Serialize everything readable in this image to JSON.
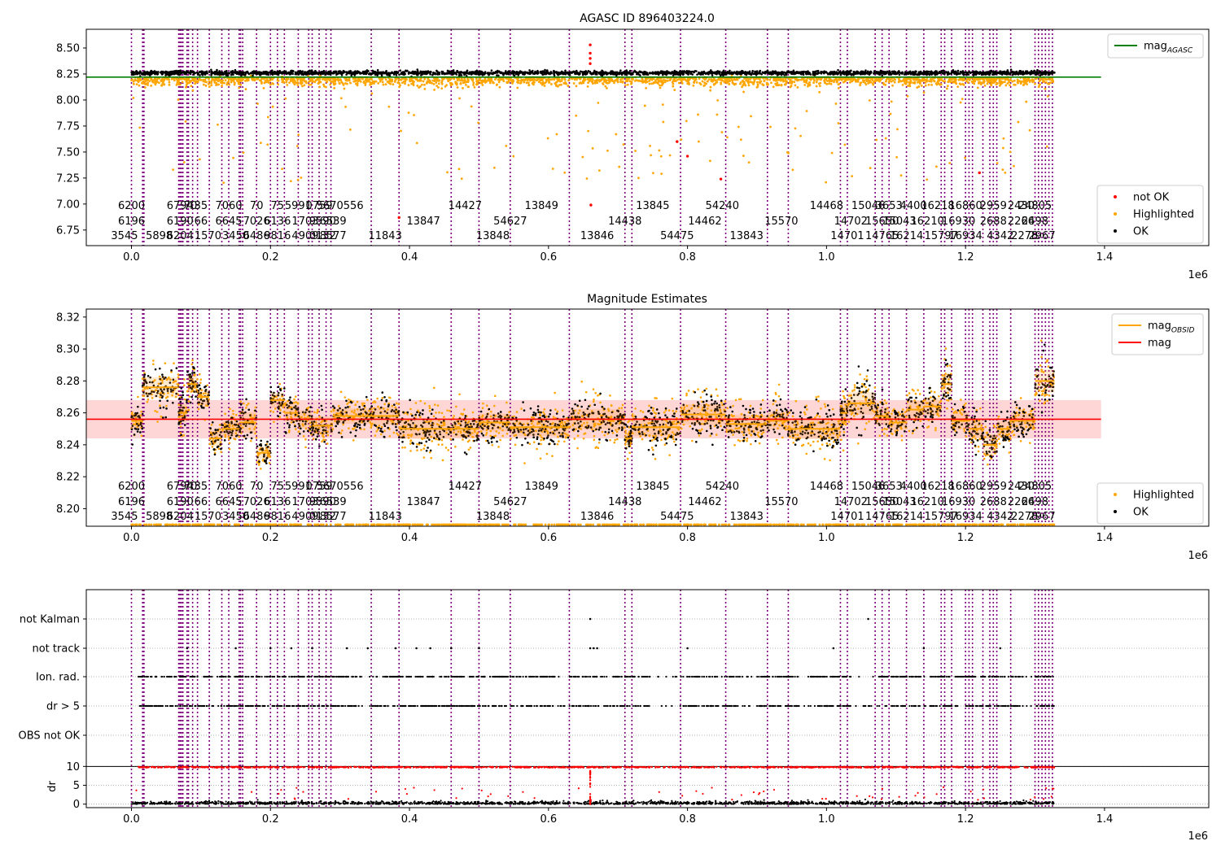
{
  "figure": {
    "background": "#ffffff",
    "colors": {
      "ok": "#000000",
      "highlighted": "#ffa500",
      "not_ok": "#ff0000",
      "obsid_line": "#800080",
      "agasc_line": "#008000",
      "obsid_mag_line": "#ffa500",
      "mag_line": "#ff0000",
      "mag_band": "#ffcccc"
    },
    "x_offset_label": "1e6"
  },
  "chart_data": [
    {
      "type": "scatter",
      "title": "AGASC ID 896403224.0",
      "xlim": [
        -0.065,
        1.55
      ],
      "ylim": [
        6.6,
        8.68
      ],
      "xticks": [
        0.0,
        0.2,
        0.4,
        0.6,
        0.8,
        1.0,
        1.2,
        1.4
      ],
      "xtick_labels": [
        "0.0",
        "0.2",
        "0.4",
        "0.6",
        "0.8",
        "1.0",
        "1.2",
        "1.4"
      ],
      "yticks": [
        6.75,
        7.0,
        7.25,
        7.5,
        7.75,
        8.0,
        8.25,
        8.5
      ],
      "ytick_labels": [
        "6.75",
        "7.00",
        "7.25",
        "7.50",
        "7.75",
        "8.00",
        "8.25",
        "8.50"
      ],
      "x_offset_label": "1e6",
      "lines": [
        {
          "name": "mag",
          "subscript": "AGASC",
          "y": 8.22,
          "x_range": [
            -0.065,
            1.395
          ],
          "color": "#008000"
        }
      ],
      "legend_upper": {
        "location": "upper right",
        "entries": [
          {
            "label": "mag",
            "subscript": "AGASC",
            "marker": "line",
            "color": "#008000"
          }
        ]
      },
      "legend_lower": {
        "location": "lower right",
        "entries": [
          {
            "label": "not OK",
            "marker": "dot",
            "color": "#ff0000"
          },
          {
            "label": "Highlighted",
            "marker": "dot",
            "color": "#ffa500"
          },
          {
            "label": "OK",
            "marker": "dot",
            "color": "#000000"
          }
        ]
      },
      "series": [
        {
          "name": "OK",
          "band": {
            "center": 8.26,
            "spread": 0.02
          },
          "color": "#000000"
        },
        {
          "name": "Highlighted",
          "band": {
            "center": 8.22,
            "spread": 0.04
          },
          "scatter_min": 7.2,
          "color": "#ffa500"
        },
        {
          "name": "not OK",
          "color": "#ff0000",
          "points": [
            {
              "x": 0.66,
              "y": 8.53
            },
            {
              "x": 0.66,
              "y": 8.45
            },
            {
              "x": 0.66,
              "y": 8.4
            },
            {
              "x": 0.66,
              "y": 8.35
            },
            {
              "x": 0.661,
              "y": 6.99
            },
            {
              "x": 0.8,
              "y": 7.46
            },
            {
              "x": 0.848,
              "y": 7.24
            },
            {
              "x": 0.385,
              "y": 6.87
            },
            {
              "x": 0.785,
              "y": 7.6
            },
            {
              "x": 1.22,
              "y": 7.3
            }
          ]
        }
      ]
    },
    {
      "type": "scatter",
      "title": "Magnitude Estimates",
      "xlim": [
        -0.065,
        1.55
      ],
      "ylim": [
        8.189,
        8.325
      ],
      "xticks": [
        0.0,
        0.2,
        0.4,
        0.6,
        0.8,
        1.0,
        1.2,
        1.4
      ],
      "xtick_labels": [
        "0.0",
        "0.2",
        "0.4",
        "0.6",
        "0.8",
        "1.0",
        "1.2",
        "1.4"
      ],
      "yticks": [
        8.2,
        8.22,
        8.24,
        8.26,
        8.28,
        8.3,
        8.32
      ],
      "ytick_labels": [
        "8.20",
        "8.22",
        "8.24",
        "8.26",
        "8.28",
        "8.30",
        "8.32"
      ],
      "x_offset_label": "1e6",
      "mag_line": {
        "name": "mag",
        "y": 8.256,
        "band": [
          8.244,
          8.268
        ],
        "x_range": [
          -0.065,
          1.395
        ],
        "color": "#ff0000"
      },
      "legend_upper": {
        "location": "upper right",
        "entries": [
          {
            "label": "mag",
            "subscript": "OBSID",
            "marker": "line",
            "color": "#ffa500"
          },
          {
            "label": "mag",
            "marker": "line",
            "color": "#ff0000"
          }
        ]
      },
      "legend_lower": {
        "location": "lower right",
        "entries": [
          {
            "label": "Highlighted",
            "marker": "dot",
            "color": "#ffa500"
          },
          {
            "label": "OK",
            "marker": "dot",
            "color": "#000000"
          }
        ]
      },
      "obsid_segments": [
        {
          "x0": 0.0,
          "x1": 0.016,
          "mean": 8.255,
          "spread": 0.012
        },
        {
          "x0": 0.016,
          "x1": 0.068,
          "mean": 8.276,
          "spread": 0.016
        },
        {
          "x0": 0.068,
          "x1": 0.08,
          "mean": 8.26,
          "spread": 0.014
        },
        {
          "x0": 0.08,
          "x1": 0.095,
          "mean": 8.278,
          "spread": 0.014
        },
        {
          "x0": 0.095,
          "x1": 0.112,
          "mean": 8.27,
          "spread": 0.012
        },
        {
          "x0": 0.112,
          "x1": 0.13,
          "mean": 8.244,
          "spread": 0.012
        },
        {
          "x0": 0.13,
          "x1": 0.155,
          "mean": 8.25,
          "spread": 0.012
        },
        {
          "x0": 0.155,
          "x1": 0.18,
          "mean": 8.254,
          "spread": 0.016
        },
        {
          "x0": 0.18,
          "x1": 0.2,
          "mean": 8.235,
          "spread": 0.01
        },
        {
          "x0": 0.2,
          "x1": 0.22,
          "mean": 8.268,
          "spread": 0.012
        },
        {
          "x0": 0.22,
          "x1": 0.24,
          "mean": 8.26,
          "spread": 0.014
        },
        {
          "x0": 0.24,
          "x1": 0.26,
          "mean": 8.256,
          "spread": 0.014
        },
        {
          "x0": 0.26,
          "x1": 0.29,
          "mean": 8.252,
          "spread": 0.014
        },
        {
          "x0": 0.29,
          "x1": 0.345,
          "mean": 8.258,
          "spread": 0.012
        },
        {
          "x0": 0.345,
          "x1": 0.385,
          "mean": 8.258,
          "spread": 0.014
        },
        {
          "x0": 0.385,
          "x1": 0.46,
          "mean": 8.25,
          "spread": 0.016
        },
        {
          "x0": 0.46,
          "x1": 0.5,
          "mean": 8.25,
          "spread": 0.014
        },
        {
          "x0": 0.5,
          "x1": 0.545,
          "mean": 8.254,
          "spread": 0.014
        },
        {
          "x0": 0.545,
          "x1": 0.63,
          "mean": 8.251,
          "spread": 0.014
        },
        {
          "x0": 0.63,
          "x1": 0.71,
          "mean": 8.256,
          "spread": 0.016
        },
        {
          "x0": 0.71,
          "x1": 0.72,
          "mean": 8.244,
          "spread": 0.01
        },
        {
          "x0": 0.72,
          "x1": 0.79,
          "mean": 8.251,
          "spread": 0.014
        },
        {
          "x0": 0.79,
          "x1": 0.855,
          "mean": 8.259,
          "spread": 0.016
        },
        {
          "x0": 0.855,
          "x1": 0.915,
          "mean": 8.253,
          "spread": 0.014
        },
        {
          "x0": 0.915,
          "x1": 0.945,
          "mean": 8.255,
          "spread": 0.014
        },
        {
          "x0": 0.945,
          "x1": 1.02,
          "mean": 8.25,
          "spread": 0.016
        },
        {
          "x0": 1.02,
          "x1": 1.03,
          "mean": 8.26,
          "spread": 0.016
        },
        {
          "x0": 1.03,
          "x1": 1.07,
          "mean": 8.266,
          "spread": 0.018
        },
        {
          "x0": 1.07,
          "x1": 1.09,
          "mean": 8.258,
          "spread": 0.014
        },
        {
          "x0": 1.09,
          "x1": 1.115,
          "mean": 8.254,
          "spread": 0.012
        },
        {
          "x0": 1.115,
          "x1": 1.14,
          "mean": 8.262,
          "spread": 0.014
        },
        {
          "x0": 1.14,
          "x1": 1.165,
          "mean": 8.264,
          "spread": 0.014
        },
        {
          "x0": 1.165,
          "x1": 1.18,
          "mean": 8.278,
          "spread": 0.016
        },
        {
          "x0": 1.18,
          "x1": 1.205,
          "mean": 8.255,
          "spread": 0.014
        },
        {
          "x0": 1.205,
          "x1": 1.225,
          "mean": 8.25,
          "spread": 0.014
        },
        {
          "x0": 1.225,
          "x1": 1.245,
          "mean": 8.24,
          "spread": 0.016
        },
        {
          "x0": 1.245,
          "x1": 1.265,
          "mean": 8.25,
          "spread": 0.012
        },
        {
          "x0": 1.265,
          "x1": 1.3,
          "mean": 8.255,
          "spread": 0.012
        },
        {
          "x0": 1.3,
          "x1": 1.328,
          "mean": 8.28,
          "spread": 0.018
        }
      ]
    },
    {
      "type": "scatter",
      "title": "",
      "xlim": [
        -0.065,
        1.55
      ],
      "categories": [
        "not Kalman",
        "not track",
        "Ion. rad.",
        "dr > 5",
        "OBS not OK"
      ],
      "category_rows": [
        {
          "label": "not Kalman",
          "points": [
            0.66,
            1.06
          ]
        },
        {
          "label": "not track",
          "points": [
            0.08,
            0.15,
            0.2,
            0.23,
            0.26,
            0.31,
            0.34,
            0.38,
            0.41,
            0.43,
            0.46,
            0.5,
            0.66,
            0.665,
            0.67,
            0.8,
            1.01,
            1.14,
            1.25
          ]
        },
        {
          "label": "Ion. rad.",
          "band": true
        },
        {
          "label": "dr > 5",
          "band": true
        },
        {
          "label": "OBS not OK",
          "points": []
        }
      ],
      "dr_panel": {
        "ylabel": "dr",
        "yticks": [
          0,
          5,
          10
        ],
        "ytick_labels": [
          "0",
          "5",
          "10"
        ],
        "ylim": [
          -0.5,
          10.5
        ],
        "threshold": 10,
        "red_level": 9.8
      },
      "xticks": [
        0.0,
        0.2,
        0.4,
        0.6,
        0.8,
        1.0,
        1.2,
        1.4
      ],
      "xtick_labels": [
        "0.0",
        "0.2",
        "0.4",
        "0.6",
        "0.8",
        "1.0",
        "1.2",
        "1.4"
      ],
      "x_offset_label": "1e6"
    }
  ],
  "obsid_lines": [
    0.0,
    0.016,
    0.018,
    0.068,
    0.07,
    0.072,
    0.074,
    0.08,
    0.082,
    0.088,
    0.095,
    0.112,
    0.13,
    0.14,
    0.155,
    0.157,
    0.16,
    0.18,
    0.2,
    0.21,
    0.22,
    0.24,
    0.255,
    0.26,
    0.27,
    0.28,
    0.287,
    0.345,
    0.385,
    0.46,
    0.5,
    0.545,
    0.63,
    0.71,
    0.72,
    0.79,
    0.855,
    0.915,
    0.945,
    1.02,
    1.03,
    1.07,
    1.08,
    1.09,
    1.115,
    1.14,
    1.165,
    1.17,
    1.18,
    1.2,
    1.205,
    1.21,
    1.225,
    1.235,
    1.24,
    1.245,
    1.265,
    1.3,
    1.305,
    1.31,
    1.315,
    1.32,
    1.325
  ],
  "obsid_labels": [
    {
      "x": 0.0,
      "row": 0,
      "text": "6200"
    },
    {
      "x": 0.0,
      "row": 1,
      "text": "6196"
    },
    {
      "x": -0.01,
      "row": 2,
      "text": "3545"
    },
    {
      "x": 0.04,
      "row": 2,
      "text": "5898"
    },
    {
      "x": 0.07,
      "row": 0,
      "text": "6794"
    },
    {
      "x": 0.07,
      "row": 1,
      "text": "6190"
    },
    {
      "x": 0.07,
      "row": 2,
      "text": "6204"
    },
    {
      "x": 0.085,
      "row": 0,
      "text": "70"
    },
    {
      "x": 0.1,
      "row": 0,
      "text": "35"
    },
    {
      "x": 0.1,
      "row": 1,
      "text": "66"
    },
    {
      "x": 0.11,
      "row": 2,
      "text": "1570"
    },
    {
      "x": 0.14,
      "row": 0,
      "text": "7060"
    },
    {
      "x": 0.14,
      "row": 1,
      "text": "6645"
    },
    {
      "x": 0.15,
      "row": 2,
      "text": "3450"
    },
    {
      "x": 0.18,
      "row": 0,
      "text": "70"
    },
    {
      "x": 0.18,
      "row": 1,
      "text": "7026"
    },
    {
      "x": 0.18,
      "row": 2,
      "text": "6486"
    },
    {
      "x": 0.21,
      "row": 0,
      "text": "75"
    },
    {
      "x": 0.21,
      "row": 1,
      "text": "6136"
    },
    {
      "x": 0.21,
      "row": 2,
      "text": "9816"
    },
    {
      "x": 0.24,
      "row": 0,
      "text": "5991"
    },
    {
      "x": 0.25,
      "row": 1,
      "text": "1703"
    },
    {
      "x": 0.25,
      "row": 2,
      "text": "4909"
    },
    {
      "x": 0.27,
      "row": 0,
      "text": "0759"
    },
    {
      "x": 0.275,
      "row": 1,
      "text": "9590"
    },
    {
      "x": 0.275,
      "row": 2,
      "text": "0132"
    },
    {
      "x": 0.3,
      "row": 0,
      "text": "5670556"
    },
    {
      "x": 0.29,
      "row": 1,
      "text": "6539"
    },
    {
      "x": 0.29,
      "row": 2,
      "text": "8577"
    },
    {
      "x": 0.365,
      "row": 2,
      "text": "11843"
    },
    {
      "x": 0.42,
      "row": 1,
      "text": "13847"
    },
    {
      "x": 0.48,
      "row": 0,
      "text": "14427"
    },
    {
      "x": 0.52,
      "row": 2,
      "text": "13848"
    },
    {
      "x": 0.545,
      "row": 1,
      "text": "54627"
    },
    {
      "x": 0.59,
      "row": 0,
      "text": "13849"
    },
    {
      "x": 0.67,
      "row": 2,
      "text": "13846"
    },
    {
      "x": 0.71,
      "row": 1,
      "text": "14438"
    },
    {
      "x": 0.75,
      "row": 0,
      "text": "13845"
    },
    {
      "x": 0.785,
      "row": 2,
      "text": "54475"
    },
    {
      "x": 0.825,
      "row": 1,
      "text": "14462"
    },
    {
      "x": 0.85,
      "row": 0,
      "text": "54240"
    },
    {
      "x": 0.885,
      "row": 2,
      "text": "13843"
    },
    {
      "x": 0.935,
      "row": 1,
      "text": "15570"
    },
    {
      "x": 1.0,
      "row": 0,
      "text": "14468"
    },
    {
      "x": 1.035,
      "row": 1,
      "text": "14702"
    },
    {
      "x": 1.03,
      "row": 2,
      "text": "14701"
    },
    {
      "x": 1.06,
      "row": 0,
      "text": "15046"
    },
    {
      "x": 1.08,
      "row": 1,
      "text": "15650"
    },
    {
      "x": 1.09,
      "row": 0,
      "text": "3653"
    },
    {
      "x": 1.125,
      "row": 0,
      "text": "4400"
    },
    {
      "x": 1.105,
      "row": 1,
      "text": "15043"
    },
    {
      "x": 1.08,
      "row": 2,
      "text": "14765"
    },
    {
      "x": 1.115,
      "row": 2,
      "text": "16214"
    },
    {
      "x": 1.16,
      "row": 0,
      "text": "16218"
    },
    {
      "x": 1.145,
      "row": 1,
      "text": "16210"
    },
    {
      "x": 1.165,
      "row": 2,
      "text": "15797"
    },
    {
      "x": 1.2,
      "row": 0,
      "text": "16860"
    },
    {
      "x": 1.19,
      "row": 1,
      "text": "16930"
    },
    {
      "x": 1.2,
      "row": 2,
      "text": "16934"
    },
    {
      "x": 1.24,
      "row": 0,
      "text": "2959"
    },
    {
      "x": 1.24,
      "row": 1,
      "text": "2688"
    },
    {
      "x": 1.25,
      "row": 2,
      "text": "4342"
    },
    {
      "x": 1.28,
      "row": 0,
      "text": "2430"
    },
    {
      "x": 1.3,
      "row": 0,
      "text": "24805"
    },
    {
      "x": 1.28,
      "row": 1,
      "text": "2266"
    },
    {
      "x": 1.3,
      "row": 1,
      "text": "2498"
    },
    {
      "x": 1.285,
      "row": 2,
      "text": "2278"
    },
    {
      "x": 1.31,
      "row": 2,
      "text": "2967"
    }
  ]
}
